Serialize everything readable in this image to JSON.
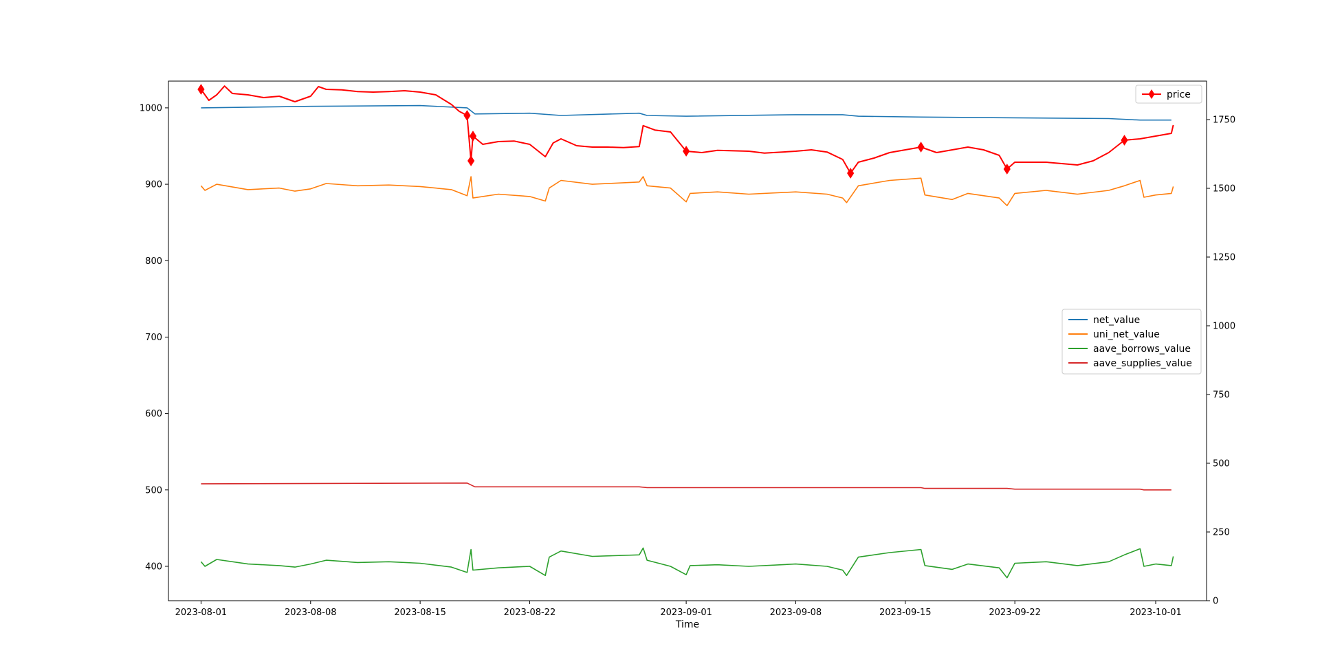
{
  "chart_data": {
    "type": "line",
    "title": "",
    "xlabel": "Time",
    "ylabel_left": "",
    "ylabel_right": "",
    "x_ticks": [
      "2023-08-01",
      "2023-08-08",
      "2023-08-15",
      "2023-08-22",
      "2023-09-01",
      "2023-09-08",
      "2023-09-15",
      "2023-09-22",
      "2023-10-01"
    ],
    "x_range": [
      "2023-07-29T22:00",
      "2023-10-04T06:00"
    ],
    "y_left_ticks": [
      400,
      500,
      600,
      700,
      800,
      900,
      1000
    ],
    "y_left_range": [
      355,
      1035
    ],
    "y_right_ticks": [
      0,
      250,
      500,
      750,
      1000,
      1250,
      1500,
      1750
    ],
    "y_right_range": [
      0,
      1890
    ],
    "legend_left": {
      "placement": "center-right",
      "entries": [
        "net_value",
        "uni_net_value",
        "aave_borrows_value",
        "aave_supplies_value"
      ]
    },
    "legend_right": {
      "placement": "top-right",
      "entries": [
        "price"
      ]
    },
    "series": [
      {
        "name": "net_value",
        "axis": "left",
        "color": "#1f77b4",
        "points": [
          [
            "2023-08-01",
            1000
          ],
          [
            "2023-08-08",
            1002
          ],
          [
            "2023-08-15",
            1003
          ],
          [
            "2023-08-18",
            1000
          ],
          [
            "2023-08-18T12:00",
            992
          ],
          [
            "2023-08-22",
            993
          ],
          [
            "2023-08-24",
            990
          ],
          [
            "2023-08-29",
            993
          ],
          [
            "2023-08-29T12:00",
            990
          ],
          [
            "2023-09-01",
            989
          ],
          [
            "2023-09-08",
            991
          ],
          [
            "2023-09-11",
            991
          ],
          [
            "2023-09-12",
            989
          ],
          [
            "2023-09-16",
            988
          ],
          [
            "2023-09-22",
            987
          ],
          [
            "2023-09-28",
            986
          ],
          [
            "2023-09-30",
            984
          ],
          [
            "2023-10-02",
            984
          ]
        ]
      },
      {
        "name": "uni_net_value",
        "axis": "left",
        "color": "#ff7f0e",
        "points": [
          [
            "2023-08-01",
            898
          ],
          [
            "2023-08-01T06:00",
            892
          ],
          [
            "2023-08-02",
            900
          ],
          [
            "2023-08-04",
            893
          ],
          [
            "2023-08-06",
            895
          ],
          [
            "2023-08-07",
            891
          ],
          [
            "2023-08-08",
            894
          ],
          [
            "2023-08-09",
            901
          ],
          [
            "2023-08-11",
            898
          ],
          [
            "2023-08-13",
            899
          ],
          [
            "2023-08-15",
            897
          ],
          [
            "2023-08-17",
            893
          ],
          [
            "2023-08-18",
            885
          ],
          [
            "2023-08-18T06:00",
            910
          ],
          [
            "2023-08-18T09:00",
            882
          ],
          [
            "2023-08-20",
            887
          ],
          [
            "2023-08-22",
            884
          ],
          [
            "2023-08-23",
            878
          ],
          [
            "2023-08-23T06:00",
            895
          ],
          [
            "2023-08-24",
            905
          ],
          [
            "2023-08-26",
            900
          ],
          [
            "2023-08-29",
            903
          ],
          [
            "2023-08-29T06:00",
            910
          ],
          [
            "2023-08-29T12:00",
            898
          ],
          [
            "2023-08-31",
            895
          ],
          [
            "2023-09-01",
            877
          ],
          [
            "2023-09-01T06:00",
            888
          ],
          [
            "2023-09-03",
            890
          ],
          [
            "2023-09-05",
            887
          ],
          [
            "2023-09-08",
            890
          ],
          [
            "2023-09-10",
            887
          ],
          [
            "2023-09-11",
            882
          ],
          [
            "2023-09-11T06:00",
            876
          ],
          [
            "2023-09-12",
            898
          ],
          [
            "2023-09-14",
            905
          ],
          [
            "2023-09-16",
            908
          ],
          [
            "2023-09-16T06:00",
            886
          ],
          [
            "2023-09-18",
            880
          ],
          [
            "2023-09-19",
            888
          ],
          [
            "2023-09-21",
            882
          ],
          [
            "2023-09-21T12:00",
            872
          ],
          [
            "2023-09-22",
            888
          ],
          [
            "2023-09-24",
            892
          ],
          [
            "2023-09-26",
            887
          ],
          [
            "2023-09-28",
            892
          ],
          [
            "2023-09-29",
            898
          ],
          [
            "2023-09-30",
            905
          ],
          [
            "2023-09-30T06:00",
            883
          ],
          [
            "2023-10-01",
            886
          ],
          [
            "2023-10-02",
            888
          ],
          [
            "2023-10-02T03:00",
            897
          ]
        ]
      },
      {
        "name": "aave_borrows_value",
        "axis": "left",
        "color": "#2ca02c",
        "points": [
          [
            "2023-08-01",
            406
          ],
          [
            "2023-08-01T06:00",
            400
          ],
          [
            "2023-08-02",
            409
          ],
          [
            "2023-08-04",
            403
          ],
          [
            "2023-08-06",
            401
          ],
          [
            "2023-08-07",
            399
          ],
          [
            "2023-08-08",
            403
          ],
          [
            "2023-08-09",
            408
          ],
          [
            "2023-08-11",
            405
          ],
          [
            "2023-08-13",
            406
          ],
          [
            "2023-08-15",
            404
          ],
          [
            "2023-08-17",
            399
          ],
          [
            "2023-08-18",
            392
          ],
          [
            "2023-08-18T06:00",
            422
          ],
          [
            "2023-08-18T09:00",
            395
          ],
          [
            "2023-08-20",
            398
          ],
          [
            "2023-08-22",
            400
          ],
          [
            "2023-08-23",
            388
          ],
          [
            "2023-08-23T06:00",
            412
          ],
          [
            "2023-08-24",
            420
          ],
          [
            "2023-08-26",
            413
          ],
          [
            "2023-08-29",
            415
          ],
          [
            "2023-08-29T06:00",
            424
          ],
          [
            "2023-08-29T12:00",
            408
          ],
          [
            "2023-08-31",
            400
          ],
          [
            "2023-09-01",
            389
          ],
          [
            "2023-09-01T06:00",
            401
          ],
          [
            "2023-09-03",
            402
          ],
          [
            "2023-09-05",
            400
          ],
          [
            "2023-09-08",
            403
          ],
          [
            "2023-09-10",
            400
          ],
          [
            "2023-09-11",
            395
          ],
          [
            "2023-09-11T06:00",
            388
          ],
          [
            "2023-09-12",
            412
          ],
          [
            "2023-09-14",
            418
          ],
          [
            "2023-09-16",
            422
          ],
          [
            "2023-09-16T06:00",
            401
          ],
          [
            "2023-09-18",
            396
          ],
          [
            "2023-09-19",
            403
          ],
          [
            "2023-09-21",
            398
          ],
          [
            "2023-09-21T12:00",
            385
          ],
          [
            "2023-09-22",
            404
          ],
          [
            "2023-09-24",
            406
          ],
          [
            "2023-09-26",
            401
          ],
          [
            "2023-09-28",
            406
          ],
          [
            "2023-09-29",
            415
          ],
          [
            "2023-09-30",
            423
          ],
          [
            "2023-09-30T06:00",
            400
          ],
          [
            "2023-10-01",
            403
          ],
          [
            "2023-10-02",
            401
          ],
          [
            "2023-10-02T03:00",
            413
          ]
        ]
      },
      {
        "name": "aave_supplies_value",
        "axis": "left",
        "color": "#d62728",
        "points": [
          [
            "2023-08-01",
            508
          ],
          [
            "2023-08-18",
            509
          ],
          [
            "2023-08-18T12:00",
            504
          ],
          [
            "2023-08-29",
            504
          ],
          [
            "2023-08-29T12:00",
            503
          ],
          [
            "2023-09-16",
            503
          ],
          [
            "2023-09-16T06:00",
            502
          ],
          [
            "2023-09-21T12:00",
            502
          ],
          [
            "2023-09-22",
            501
          ],
          [
            "2023-09-30",
            501
          ],
          [
            "2023-09-30T06:00",
            500
          ],
          [
            "2023-10-02",
            500
          ]
        ]
      },
      {
        "name": "price",
        "axis": "right",
        "color": "#ff0000",
        "marker": "diamond",
        "markers_at": [
          [
            "2023-08-01",
            1860
          ],
          [
            "2023-08-18",
            1765
          ],
          [
            "2023-08-18T06:00",
            1600
          ],
          [
            "2023-08-18T09:00",
            1690
          ],
          [
            "2023-09-01",
            1635
          ],
          [
            "2023-09-11T12:00",
            1555
          ],
          [
            "2023-09-16",
            1650
          ],
          [
            "2023-09-21T12:00",
            1570
          ],
          [
            "2023-09-29",
            1675
          ]
        ],
        "points": [
          [
            "2023-08-01",
            1860
          ],
          [
            "2023-08-01T12:00",
            1820
          ],
          [
            "2023-08-02",
            1840
          ],
          [
            "2023-08-02T12:00",
            1872
          ],
          [
            "2023-08-03",
            1845
          ],
          [
            "2023-08-04",
            1840
          ],
          [
            "2023-08-05",
            1830
          ],
          [
            "2023-08-06",
            1835
          ],
          [
            "2023-08-07",
            1815
          ],
          [
            "2023-08-08",
            1835
          ],
          [
            "2023-08-08T12:00",
            1870
          ],
          [
            "2023-08-09",
            1860
          ],
          [
            "2023-08-10",
            1858
          ],
          [
            "2023-08-11",
            1852
          ],
          [
            "2023-08-12",
            1850
          ],
          [
            "2023-08-13",
            1852
          ],
          [
            "2023-08-14",
            1855
          ],
          [
            "2023-08-15",
            1850
          ],
          [
            "2023-08-16",
            1840
          ],
          [
            "2023-08-17",
            1805
          ],
          [
            "2023-08-17T12:00",
            1780
          ],
          [
            "2023-08-18",
            1765
          ],
          [
            "2023-08-18T06:00",
            1600
          ],
          [
            "2023-08-18T09:00",
            1690
          ],
          [
            "2023-08-19",
            1660
          ],
          [
            "2023-08-20",
            1670
          ],
          [
            "2023-08-21",
            1672
          ],
          [
            "2023-08-22",
            1660
          ],
          [
            "2023-08-23",
            1615
          ],
          [
            "2023-08-23T12:00",
            1665
          ],
          [
            "2023-08-24",
            1680
          ],
          [
            "2023-08-25",
            1655
          ],
          [
            "2023-08-26",
            1650
          ],
          [
            "2023-08-27",
            1650
          ],
          [
            "2023-08-28",
            1648
          ],
          [
            "2023-08-29",
            1652
          ],
          [
            "2023-08-29T06:00",
            1728
          ],
          [
            "2023-08-30",
            1712
          ],
          [
            "2023-08-31",
            1705
          ],
          [
            "2023-09-01",
            1635
          ],
          [
            "2023-09-02",
            1630
          ],
          [
            "2023-09-03",
            1638
          ],
          [
            "2023-09-05",
            1635
          ],
          [
            "2023-09-06",
            1628
          ],
          [
            "2023-09-08",
            1635
          ],
          [
            "2023-09-09",
            1640
          ],
          [
            "2023-09-10",
            1632
          ],
          [
            "2023-09-11",
            1605
          ],
          [
            "2023-09-11T12:00",
            1555
          ],
          [
            "2023-09-12",
            1595
          ],
          [
            "2023-09-13",
            1610
          ],
          [
            "2023-09-14",
            1630
          ],
          [
            "2023-09-15",
            1640
          ],
          [
            "2023-09-16",
            1650
          ],
          [
            "2023-09-17",
            1630
          ],
          [
            "2023-09-18",
            1640
          ],
          [
            "2023-09-19",
            1650
          ],
          [
            "2023-09-20",
            1640
          ],
          [
            "2023-09-21",
            1620
          ],
          [
            "2023-09-21T12:00",
            1570
          ],
          [
            "2023-09-22",
            1595
          ],
          [
            "2023-09-24",
            1595
          ],
          [
            "2023-09-26",
            1585
          ],
          [
            "2023-09-27",
            1600
          ],
          [
            "2023-09-28",
            1630
          ],
          [
            "2023-09-29",
            1675
          ],
          [
            "2023-09-30",
            1680
          ],
          [
            "2023-10-01",
            1690
          ],
          [
            "2023-10-02",
            1700
          ],
          [
            "2023-10-02T03:00",
            1730
          ]
        ]
      }
    ]
  }
}
